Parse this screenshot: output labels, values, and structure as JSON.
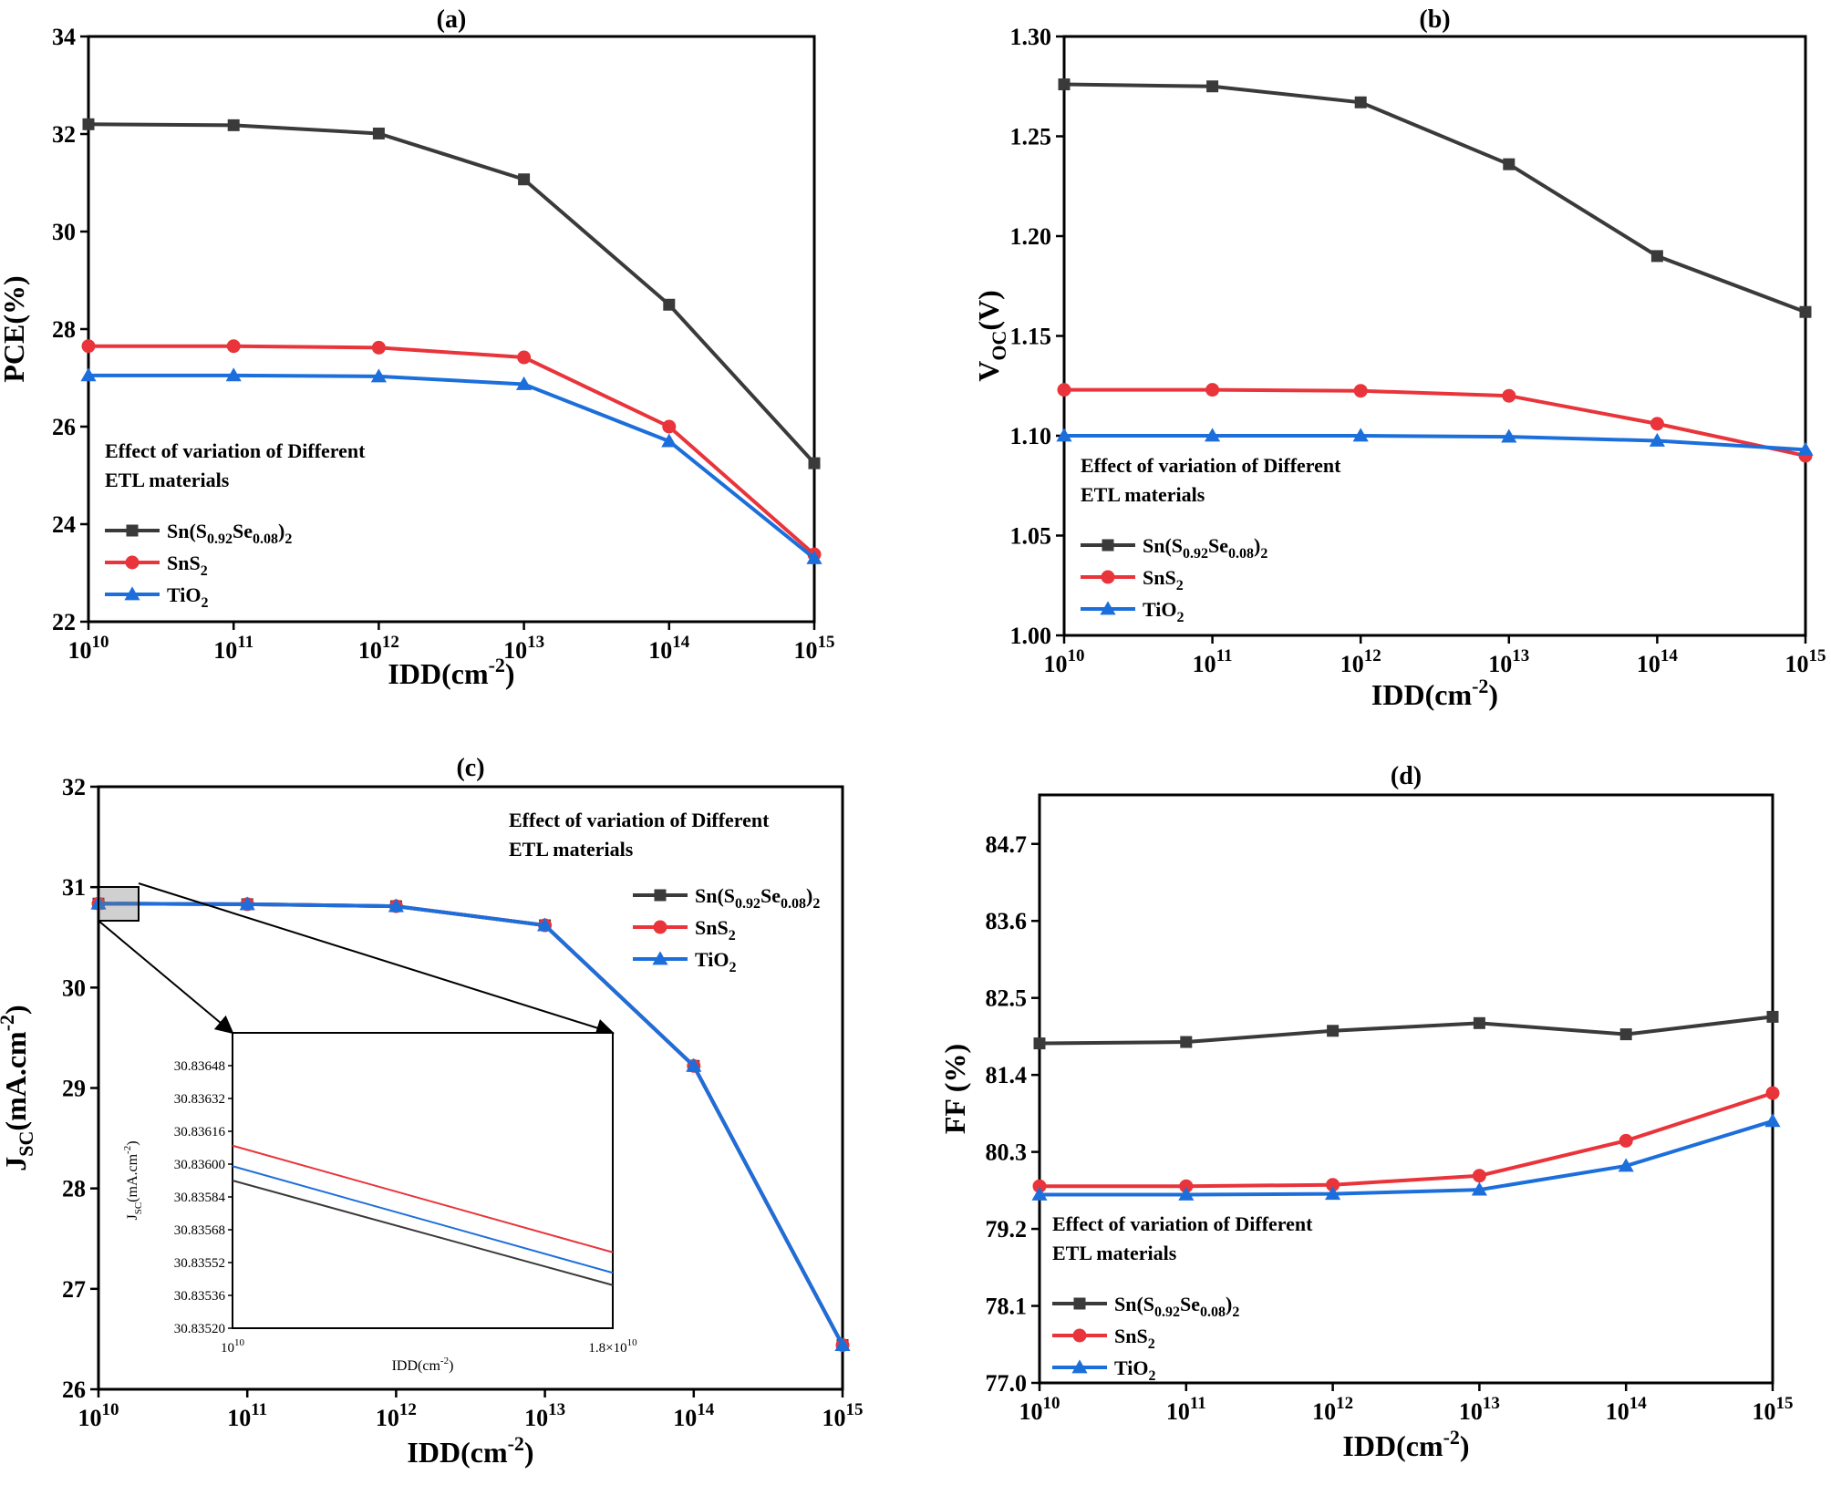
{
  "colors": {
    "black": "#3a3a3a",
    "red": "#e8343a",
    "blue": "#1c6fdb"
  },
  "x_tick_base": "10",
  "x_exponents": [
    "10",
    "11",
    "12",
    "13",
    "14",
    "15"
  ],
  "annotation_line1": "Effect of variation of Different",
  "annotation_line2": "ETL materials",
  "legend": [
    {
      "key": "black",
      "marker": "square",
      "html": "Sn(S<tspan font-size='16' dy='6'>0.92</tspan><tspan dy='-6'>Se</tspan><tspan font-size='16' dy='6'>0.08</tspan><tspan dy='-6'>)</tspan><tspan font-size='16' dy='6'>2</tspan>"
    },
    {
      "key": "red",
      "marker": "circle",
      "html": "SnS<tspan font-size='16' dy='6'>2</tspan>"
    },
    {
      "key": "blue",
      "marker": "triangle",
      "html": "TiO<tspan font-size='16' dy='6'>2</tspan>"
    }
  ],
  "chart_data": [
    {
      "panel": "(a)",
      "type": "line",
      "x": [
        10000000000.0,
        100000000000.0,
        1000000000000.0,
        10000000000000.0,
        100000000000000.0,
        1000000000000000.0
      ],
      "x_scale": "log",
      "xlabel": "IDD(cm-2)",
      "ylabel": "PCE(%)",
      "ylim": [
        22,
        34
      ],
      "yticks": [
        22,
        24,
        26,
        28,
        30,
        32,
        34
      ],
      "ytick_labels": [
        "22",
        "24",
        "26",
        "28",
        "30",
        "32",
        "34"
      ],
      "series": [
        {
          "name": "Sn(S0.92Se0.08)2",
          "values": [
            32.2,
            32.18,
            32.01,
            31.07,
            28.5,
            25.25
          ]
        },
        {
          "name": "SnS2",
          "values": [
            27.65,
            27.65,
            27.62,
            27.42,
            26.0,
            23.38
          ]
        },
        {
          "name": "TiO2",
          "values": [
            27.05,
            27.05,
            27.03,
            26.87,
            25.7,
            23.3
          ]
        }
      ],
      "annotation_position": "bottom-left",
      "legend_position": "bottom-left"
    },
    {
      "panel": "(b)",
      "type": "line",
      "x": [
        10000000000.0,
        100000000000.0,
        1000000000000.0,
        10000000000000.0,
        100000000000000.0,
        1000000000000000.0
      ],
      "x_scale": "log",
      "xlabel": "IDD(cm-2)",
      "ylabel": "VOC(V)",
      "ylim": [
        1.0,
        1.3
      ],
      "yticks": [
        1.0,
        1.05,
        1.1,
        1.15,
        1.2,
        1.25,
        1.3
      ],
      "ytick_labels": [
        "1.00",
        "1.05",
        "1.10",
        "1.15",
        "1.20",
        "1.25",
        "1.30"
      ],
      "series": [
        {
          "name": "Sn(S0.92Se0.08)2",
          "values": [
            1.276,
            1.275,
            1.267,
            1.236,
            1.19,
            1.162
          ]
        },
        {
          "name": "SnS2",
          "values": [
            1.123,
            1.123,
            1.1225,
            1.12,
            1.106,
            1.09
          ]
        },
        {
          "name": "TiO2",
          "values": [
            1.1,
            1.1,
            1.1,
            1.0995,
            1.0975,
            1.093
          ]
        }
      ],
      "annotation_position": "bottom-left",
      "legend_position": "bottom-left"
    },
    {
      "panel": "(c)",
      "type": "line",
      "x": [
        10000000000.0,
        100000000000.0,
        1000000000000.0,
        10000000000000.0,
        100000000000000.0,
        1000000000000000.0
      ],
      "x_scale": "log",
      "xlabel": "IDD(cm-2)",
      "ylabel": "JSC(mA.cm-2)",
      "ylim": [
        26,
        32
      ],
      "yticks": [
        26,
        27,
        28,
        29,
        30,
        31,
        32
      ],
      "ytick_labels": [
        "26",
        "27",
        "28",
        "29",
        "30",
        "31",
        "32"
      ],
      "series": [
        {
          "name": "Sn(S0.92Se0.08)2",
          "values": [
            30.836,
            30.83,
            30.81,
            30.62,
            29.22,
            26.44
          ]
        },
        {
          "name": "SnS2",
          "values": [
            30.836,
            30.83,
            30.81,
            30.62,
            29.22,
            26.44
          ]
        },
        {
          "name": "TiO2",
          "values": [
            30.836,
            30.83,
            30.81,
            30.62,
            29.22,
            26.44
          ]
        }
      ],
      "annotation_position": "top-right",
      "legend_position": "top-right",
      "inset": {
        "xlabel": "IDD(cm-2)",
        "ylabel": "JSC(mA.cm-2)",
        "xlim": [
          10000000000.0,
          18000000000.0
        ],
        "xtick_left": "10",
        "xtick_left_exp": "10",
        "xtick_right": "1.8×10",
        "xtick_right_exp": "10",
        "ylim": [
          30.8352,
          30.83664
        ],
        "yticks": [
          30.8352,
          30.83536,
          30.83552,
          30.83568,
          30.83584,
          30.836,
          30.83616,
          30.83632,
          30.83648
        ],
        "ytick_labels": [
          "30.83520",
          "30.83536",
          "30.83552",
          "30.83568",
          "30.83584",
          "30.83600",
          "30.83616",
          "30.83632",
          "30.83648"
        ],
        "series": [
          {
            "name": "Sn(S0.92Se0.08)2",
            "values": [
              30.83592,
              30.83541
            ]
          },
          {
            "name": "SnS2",
            "values": [
              30.83609,
              30.83557
            ]
          },
          {
            "name": "TiO2",
            "values": [
              30.83599,
              30.83547
            ]
          }
        ]
      }
    },
    {
      "panel": "(d)",
      "type": "line",
      "x": [
        10000000000.0,
        100000000000.0,
        1000000000000.0,
        10000000000000.0,
        100000000000000.0,
        1000000000000000.0
      ],
      "x_scale": "log",
      "xlabel": "IDD(cm-2)",
      "ylabel": "FF (%)",
      "ylim": [
        77.0,
        85.4
      ],
      "yticks": [
        77.0,
        78.1,
        79.2,
        80.3,
        81.4,
        82.5,
        83.6,
        84.7
      ],
      "ytick_labels": [
        "77.0",
        "78.1",
        "79.2",
        "80.3",
        "81.4",
        "82.5",
        "83.6",
        "84.7"
      ],
      "series": [
        {
          "name": "Sn(S0.92Se0.08)2",
          "values": [
            81.85,
            81.87,
            82.03,
            82.14,
            81.98,
            82.23
          ]
        },
        {
          "name": "SnS2",
          "values": [
            79.81,
            79.81,
            79.83,
            79.96,
            80.46,
            81.14
          ]
        },
        {
          "name": "TiO2",
          "values": [
            79.69,
            79.69,
            79.7,
            79.76,
            80.1,
            80.74
          ]
        }
      ],
      "annotation_position": "bottom-left",
      "legend_position": "bottom-left"
    }
  ]
}
